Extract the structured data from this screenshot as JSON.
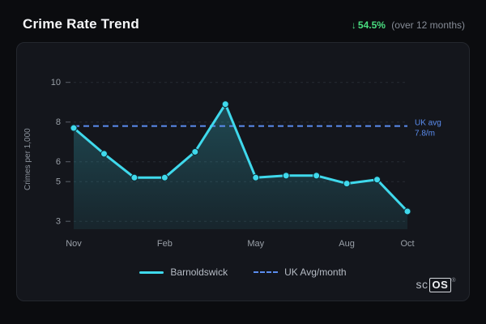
{
  "header": {
    "title": "Crime Rate Trend",
    "trend_arrow": "↓",
    "trend_value": "54.5%",
    "trend_period": "(over 12 months)"
  },
  "chart_data": {
    "type": "line",
    "title": "Crime Rate Trend",
    "xlabel": "",
    "ylabel": "Crimes per 1,000",
    "x": [
      "Nov",
      "Dec",
      "Jan",
      "Feb",
      "Mar",
      "Apr",
      "May",
      "Jun",
      "Jul",
      "Aug",
      "Sep",
      "Oct"
    ],
    "x_labeled_indices": [
      0,
      3,
      6,
      9,
      11
    ],
    "y_ticks": [
      10,
      8,
      6,
      5,
      3
    ],
    "ylim": [
      2.6,
      10.6
    ],
    "grid": true,
    "legend_position": "bottom",
    "series": [
      {
        "name": "Barnoldswick",
        "type": "line-area",
        "color": "#3fd9ec",
        "values": [
          7.7,
          6.4,
          5.2,
          5.2,
          6.5,
          8.9,
          5.2,
          5.3,
          5.3,
          4.9,
          5.1,
          3.5
        ]
      },
      {
        "name": "UK Avg/month",
        "type": "reference-line",
        "color": "#5b8def",
        "value": 7.8,
        "label": [
          "UK avg",
          "7.8/m"
        ]
      }
    ]
  },
  "footer": {
    "logo_prefix": "sc",
    "logo_box": "OS",
    "logo_reg": "®"
  },
  "colors": {
    "accent_green": "#4ade80",
    "line_cyan": "#3fd9ec",
    "reference_blue": "#5b8def",
    "card_bg": "#14161c",
    "page_bg": "#0b0c0f",
    "grid": "#262b33",
    "tick_text": "#9aa0a8"
  }
}
